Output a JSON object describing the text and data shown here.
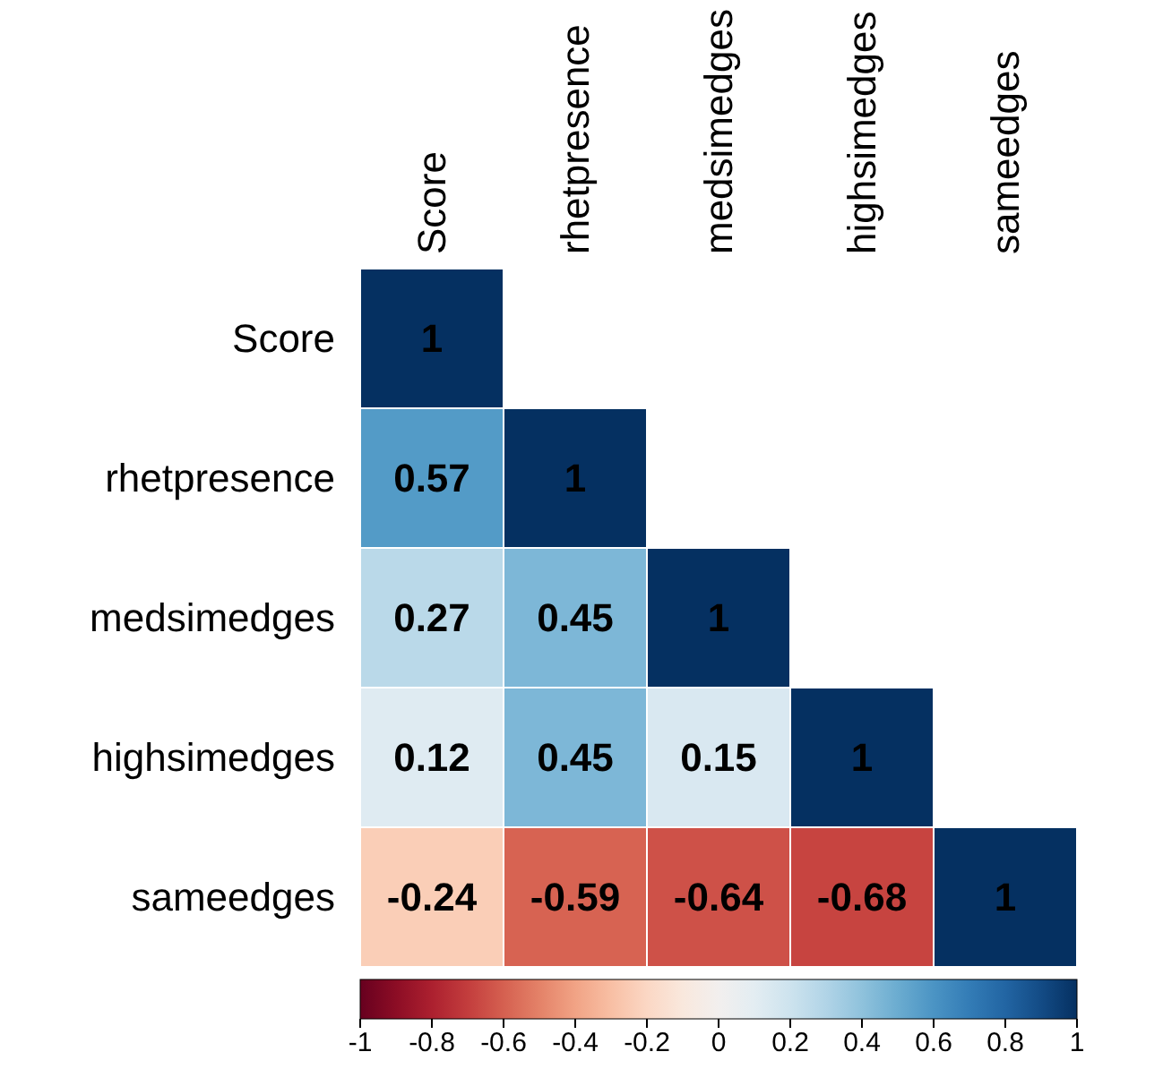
{
  "chart_data": {
    "type": "heatmap",
    "categories": [
      "Score",
      "rhetpresence",
      "medsimedges",
      "highsimedges",
      "sameedges"
    ],
    "y_categories": [
      "Score",
      "rhetpresence",
      "medsimedges",
      "highsimedges",
      "sameedges"
    ],
    "cells": [
      [
        1,
        null,
        null,
        null,
        null
      ],
      [
        0.57,
        1,
        null,
        null,
        null
      ],
      [
        0.27,
        0.45,
        1,
        null,
        null
      ],
      [
        0.12,
        0.45,
        0.15,
        1,
        null
      ],
      [
        -0.24,
        -0.59,
        -0.64,
        -0.68,
        1
      ]
    ],
    "data_labels": true,
    "clim": [
      -1,
      1
    ],
    "cticks": [
      -1,
      -0.8,
      -0.6,
      -0.4,
      -0.2,
      0,
      0.2,
      0.4,
      0.6,
      0.8,
      1
    ]
  }
}
